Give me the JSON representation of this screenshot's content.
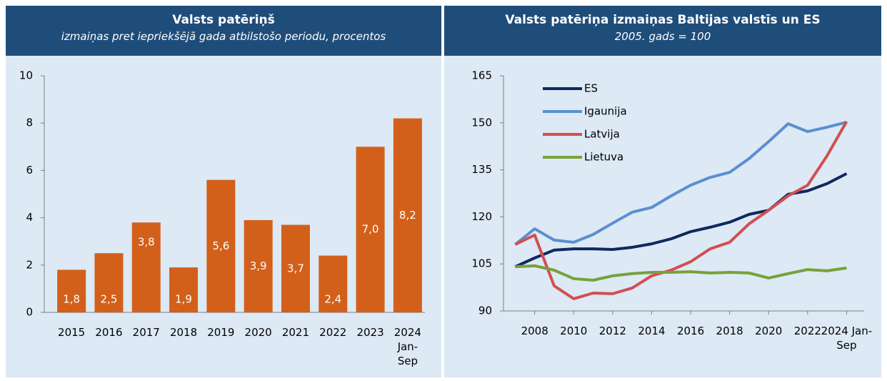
{
  "chart_data": [
    {
      "type": "bar",
      "title": "Valsts patēriņš",
      "subtitle": "izmaiņas pret iepriekšējā gada atbilstošo periodu, procentos",
      "categories": [
        "2015",
        "2016",
        "2017",
        "2018",
        "2019",
        "2020",
        "2021",
        "2022",
        "2023",
        "2024 Jan-Sep"
      ],
      "values": [
        1.8,
        2.5,
        3.8,
        1.9,
        5.6,
        3.9,
        3.7,
        2.4,
        7.0,
        8.2
      ],
      "value_labels": [
        "1,8",
        "2,5",
        "3,8",
        "1,9",
        "5,6",
        "3,9",
        "3,7",
        "2,4",
        "7,0",
        "8,2"
      ],
      "color": "#d2601a",
      "ylim": [
        0,
        10
      ],
      "yticks": [
        0,
        2,
        4,
        6,
        8,
        10
      ]
    },
    {
      "type": "line",
      "title": "Valsts patēriņa izmaiņas Baltijas valstīs un ES",
      "subtitle": "2005. gads = 100",
      "x": [
        2007,
        2008,
        2009,
        2010,
        2011,
        2012,
        2013,
        2014,
        2015,
        2016,
        2017,
        2018,
        2019,
        2020,
        2021,
        2022,
        2023,
        2024
      ],
      "series": [
        {
          "name": "ES",
          "color": "#0d2a5e",
          "values": [
            104.1,
            106.9,
            109.4,
            109.8,
            109.8,
            109.6,
            110.3,
            111.4,
            113,
            115.3,
            116.7,
            118.3,
            120.8,
            122.1,
            127.2,
            128.3,
            130.6,
            133.8
          ]
        },
        {
          "name": "Igaunija",
          "color": "#5b8fd0",
          "values": [
            111.2,
            116.2,
            112.6,
            111.9,
            114.4,
            118,
            121.5,
            123,
            126.7,
            130.1,
            132.6,
            134.2,
            138.6,
            144,
            149.7,
            147.2,
            148.6,
            150.2
          ]
        },
        {
          "name": "Latvija",
          "color": "#d14f52",
          "values": [
            111.2,
            114.2,
            98,
            93.9,
            95.7,
            95.5,
            97.3,
            101.2,
            103,
            105.7,
            109.8,
            111.9,
            117.8,
            122.1,
            126.7,
            130.1,
            139.5,
            150.4
          ]
        },
        {
          "name": "Lietuva",
          "color": "#77a13a",
          "values": [
            104.1,
            104.4,
            103,
            100.3,
            99.8,
            101.2,
            101.9,
            102.3,
            102.3,
            102.5,
            102.1,
            102.3,
            102.1,
            100.5,
            101.9,
            103.2,
            102.8,
            103.7
          ]
        }
      ],
      "xlim": [
        2006.4,
        2024.9
      ],
      "xticks": [
        2008,
        2010,
        2012,
        2014,
        2016,
        2018,
        2020,
        2022,
        {
          "value": 2024,
          "label": "2024 Jan-Sep"
        }
      ],
      "ylim": [
        90,
        165
      ],
      "yticks": [
        90,
        105,
        120,
        135,
        150,
        165
      ],
      "legend": "upper left"
    }
  ]
}
